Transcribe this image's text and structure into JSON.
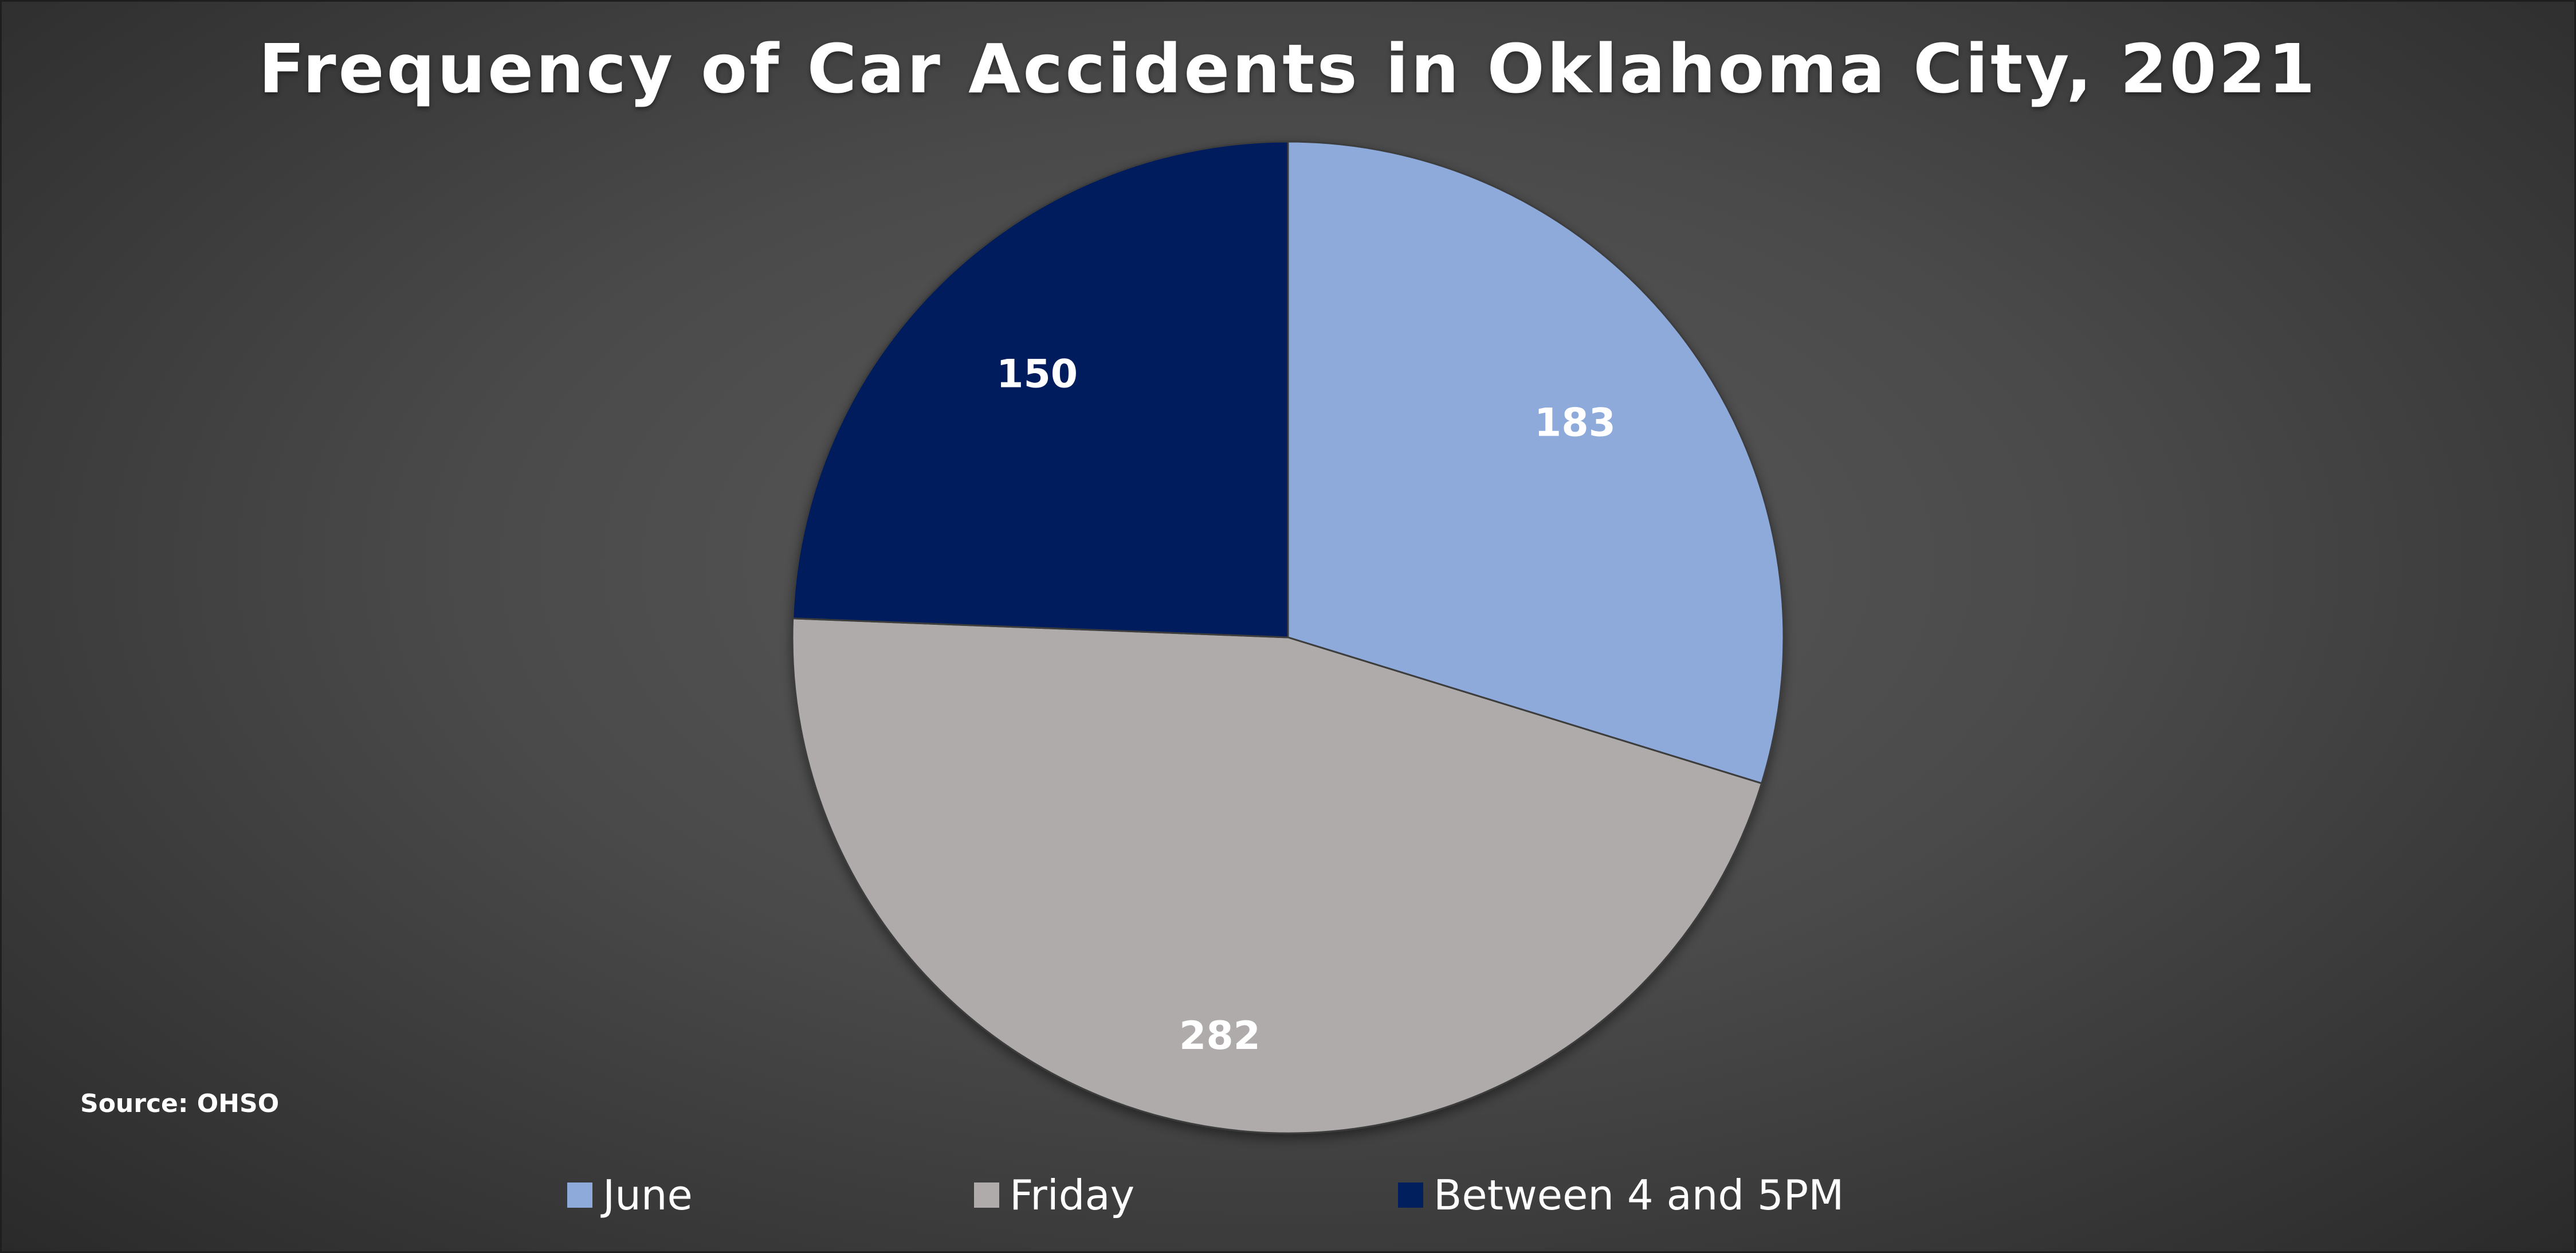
{
  "chart_data": {
    "type": "pie",
    "title": "Frequency of Car Accidents in Oklahoma City, 2021",
    "categories": [
      "June",
      "Friday",
      "Between 4 and 5PM"
    ],
    "values": [
      183,
      282,
      150
    ],
    "colors": [
      "#8eaadb",
      "#afabab",
      "#001f5c"
    ],
    "data_labels": [
      "183",
      "282",
      "150"
    ],
    "legend_position": "bottom",
    "note": "Source: OHSO"
  }
}
